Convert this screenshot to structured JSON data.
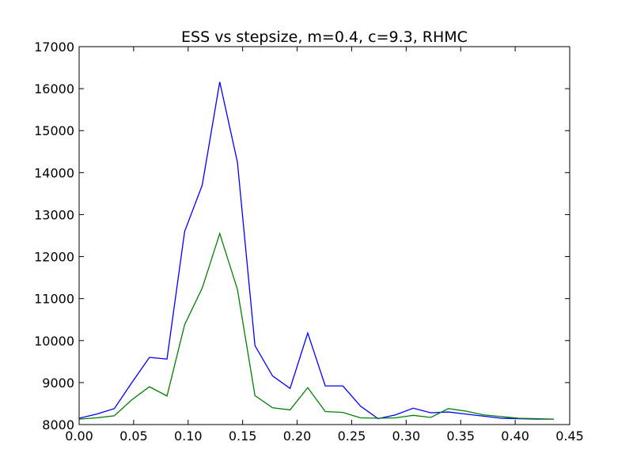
{
  "chart_data": {
    "type": "line",
    "title": "ESS vs stepsize, m=0.4, c=9.3, RHMC",
    "xlabel": "",
    "ylabel": "",
    "xlim": [
      0.0,
      0.45
    ],
    "ylim": [
      8000,
      17000
    ],
    "xticks": [
      0.0,
      0.05,
      0.1,
      0.15,
      0.2,
      0.25,
      0.3,
      0.35,
      0.4,
      0.45
    ],
    "xtick_labels": [
      "0.00",
      "0.05",
      "0.10",
      "0.15",
      "0.20",
      "0.25",
      "0.30",
      "0.35",
      "0.40",
      "0.45"
    ],
    "yticks": [
      8000,
      9000,
      10000,
      11000,
      12000,
      13000,
      14000,
      15000,
      16000,
      17000
    ],
    "ytick_labels": [
      "8000",
      "9000",
      "10000",
      "11000",
      "12000",
      "13000",
      "14000",
      "15000",
      "16000",
      "17000"
    ],
    "grid": false,
    "x": [
      0.0,
      0.0161,
      0.0323,
      0.0484,
      0.0645,
      0.0806,
      0.0968,
      0.1129,
      0.129,
      0.1452,
      0.1613,
      0.1774,
      0.1935,
      0.2097,
      0.2258,
      0.2419,
      0.2581,
      0.2742,
      0.2903,
      0.3065,
      0.3226,
      0.3387,
      0.3548,
      0.371,
      0.3871,
      0.4032,
      0.4194,
      0.4355
    ],
    "series": [
      {
        "color": "#0000ff",
        "values": [
          8150,
          8250,
          8380,
          9000,
          9600,
          9560,
          12600,
          13700,
          16160,
          14250,
          9880,
          9160,
          8860,
          10180,
          8920,
          8920,
          8440,
          8140,
          8230,
          8390,
          8280,
          8300,
          8250,
          8200,
          8150,
          8140,
          8130,
          8130
        ]
      },
      {
        "color": "#008000",
        "values": [
          8130,
          8160,
          8210,
          8590,
          8900,
          8680,
          10380,
          11250,
          12550,
          11220,
          8690,
          8400,
          8350,
          8880,
          8310,
          8290,
          8160,
          8150,
          8160,
          8220,
          8170,
          8380,
          8320,
          8230,
          8190,
          8150,
          8140,
          8130
        ]
      }
    ]
  }
}
